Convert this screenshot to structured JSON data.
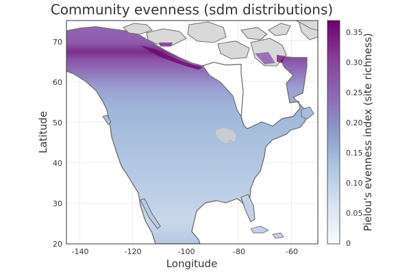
{
  "title": "Community evenness (sdm distributions)",
  "xlabel": "Longitude",
  "ylabel": "Latitude",
  "x_ticks": [
    "-140",
    "-120",
    "-100",
    "-80",
    "-60"
  ],
  "y_ticks": [
    "20",
    "30",
    "40",
    "50",
    "60",
    "70"
  ],
  "colorbar": {
    "label": "Pielou's evenness index (site richness)",
    "ticks": [
      "0",
      "0.05",
      "0.10",
      "0.15",
      "0.20",
      "0.25",
      "0.30",
      "0.35"
    ],
    "range": [
      0,
      0.37
    ],
    "colormap": [
      "#f7fbfd",
      "#d6e2f0",
      "#a9c3df",
      "#8c9bcb",
      "#8c6bb4",
      "#88419d",
      "#6e016b"
    ]
  },
  "map": {
    "lon_range": [
      -145,
      -50
    ],
    "lat_range": [
      20,
      75
    ],
    "grid": true,
    "land_no_data_color": "#d9d9d9",
    "coast_color": "#737373"
  },
  "chart_data": {
    "type": "heatmap",
    "title": "Community evenness (sdm distributions)",
    "xlabel": "Longitude",
    "ylabel": "Latitude",
    "xlim": [
      -145,
      -50
    ],
    "ylim": [
      20,
      75
    ],
    "x_ticks": [
      -140,
      -120,
      -100,
      -80,
      -60
    ],
    "y_ticks": [
      20,
      30,
      40,
      50,
      60,
      70
    ],
    "colorbar_label": "Pielou's evenness index (site richness)",
    "colorbar_range": [
      0,
      0.37
    ],
    "colorbar_ticks": [
      0,
      0.05,
      0.1,
      0.15,
      0.2,
      0.25,
      0.3,
      0.35
    ],
    "grid": true,
    "value_pattern": [
      {
        "latitude": 20,
        "approx_value": 0.14
      },
      {
        "latitude": 30,
        "approx_value": 0.1
      },
      {
        "latitude": 40,
        "approx_value": 0.12
      },
      {
        "latitude": 50,
        "approx_value": 0.14
      },
      {
        "latitude": 57,
        "approx_value": 0.17
      },
      {
        "latitude": 62,
        "approx_value": 0.22
      },
      {
        "latitude": 67,
        "approx_value": 0.28
      },
      {
        "latitude": 69,
        "approx_value": 0.35
      }
    ]
  }
}
